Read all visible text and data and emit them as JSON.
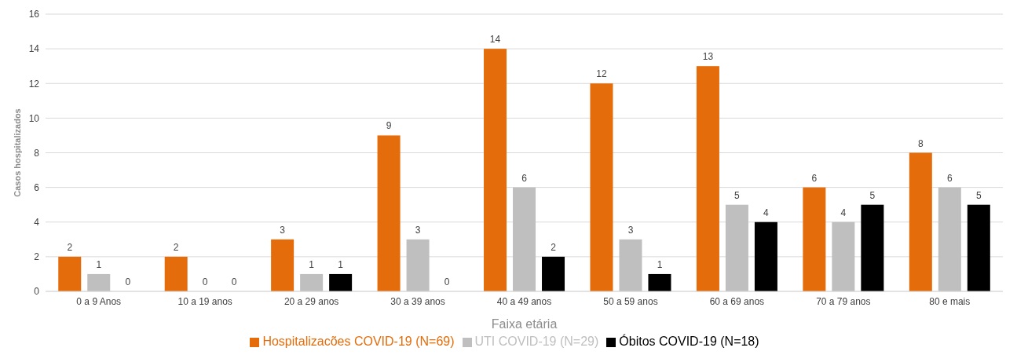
{
  "chart_data": {
    "type": "bar",
    "xlabel": "Faixa etária",
    "ylabel": "Casos hospitalizados",
    "categories": [
      "0 a 9 Anos",
      "10 a 19 anos",
      "20 a 29 anos",
      "30 a 39 anos",
      "40 a 49 anos",
      "50 a 59 anos",
      "60 a 69 anos",
      "70 a 79 anos",
      "80 e mais"
    ],
    "series": [
      {
        "name": "Hospitalizacões COVID-19 (N=69)",
        "color": "#e46c0a",
        "values": [
          2,
          2,
          3,
          9,
          14,
          12,
          13,
          6,
          8
        ]
      },
      {
        "name": "UTI COVID-19 (N=29)",
        "color": "#bfbfbf",
        "values": [
          1,
          0,
          1,
          3,
          6,
          3,
          5,
          4,
          6
        ]
      },
      {
        "name": "Óbitos COVID-19 (N=18)",
        "color": "#000000",
        "values": [
          0,
          0,
          1,
          0,
          2,
          1,
          4,
          5,
          5
        ]
      }
    ],
    "ylim": [
      0,
      16
    ],
    "yticks": [
      0,
      2,
      4,
      6,
      8,
      10,
      12,
      14,
      16
    ],
    "grid": "y",
    "legend": "bottom",
    "data_labels": true
  }
}
